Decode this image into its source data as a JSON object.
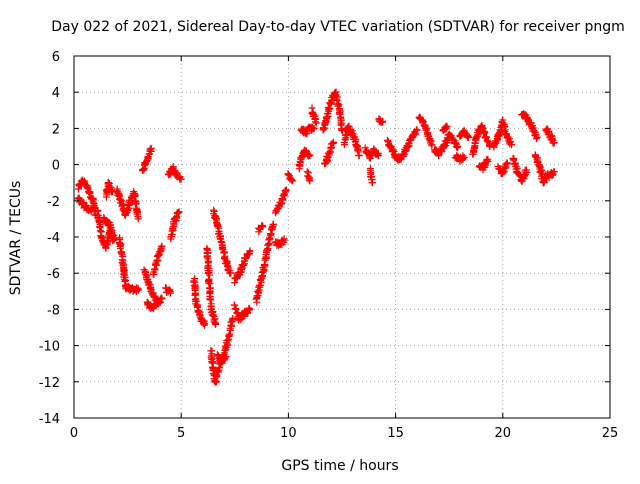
{
  "chart_data": {
    "type": "scatter",
    "title": "Day 022 of 2021, Sidereal Day-to-day VTEC variation (SDTVAR) for receiver pngm",
    "xlabel": "GPS time / hours",
    "ylabel": "SDTVAR / TECUs",
    "xlim": [
      0,
      25
    ],
    "ylim": [
      -14,
      6
    ],
    "xticks": [
      0,
      5,
      10,
      15,
      20,
      25
    ],
    "yticks": [
      -14,
      -12,
      -10,
      -8,
      -6,
      -4,
      -2,
      0,
      2,
      4,
      6
    ],
    "grid": true,
    "marker": "+",
    "color": "#ff0000",
    "traces": [
      [
        [
          0.2,
          -1.3
        ],
        [
          0.4,
          -0.9
        ],
        [
          0.6,
          -1.2
        ],
        [
          0.9,
          -2.0
        ],
        [
          1.0,
          -2.8
        ]
      ],
      [
        [
          0.2,
          -1.9
        ],
        [
          0.5,
          -2.3
        ],
        [
          0.8,
          -2.6
        ]
      ],
      [
        [
          1.1,
          -2.5
        ],
        [
          1.2,
          -3.3
        ],
        [
          1.3,
          -4.1
        ],
        [
          1.5,
          -4.6
        ],
        [
          1.7,
          -3.6
        ],
        [
          1.9,
          -4.1
        ]
      ],
      [
        [
          1.4,
          -3.0
        ],
        [
          1.7,
          -3.4
        ],
        [
          1.8,
          -4.2
        ]
      ],
      [
        [
          1.5,
          -1.7
        ],
        [
          1.6,
          -1.0
        ],
        [
          1.8,
          -1.5
        ]
      ],
      [
        [
          2.0,
          -1.4
        ],
        [
          2.2,
          -2.0
        ],
        [
          2.4,
          -2.8
        ],
        [
          2.6,
          -2.1
        ],
        [
          2.8,
          -1.5
        ],
        [
          3.0,
          -3.0
        ]
      ],
      [
        [
          2.1,
          -4.0
        ],
        [
          2.3,
          -5.6
        ],
        [
          2.4,
          -6.8
        ],
        [
          2.7,
          -6.9
        ],
        [
          3.0,
          -6.9
        ]
      ],
      [
        [
          3.2,
          -0.3
        ],
        [
          3.4,
          0.3
        ],
        [
          3.6,
          0.9
        ]
      ],
      [
        [
          3.3,
          -5.8
        ],
        [
          3.5,
          -6.6
        ],
        [
          3.7,
          -7.2
        ],
        [
          3.9,
          -7.6
        ],
        [
          4.1,
          -7.4
        ]
      ],
      [
        [
          3.4,
          -7.6
        ],
        [
          3.6,
          -7.9
        ],
        [
          3.9,
          -7.7
        ]
      ],
      [
        [
          3.7,
          -6.0
        ],
        [
          3.9,
          -5.2
        ],
        [
          4.1,
          -4.5
        ]
      ],
      [
        [
          4.3,
          -6.9
        ],
        [
          4.5,
          -7.1
        ]
      ],
      [
        [
          4.5,
          -4.0
        ],
        [
          4.7,
          -3.1
        ],
        [
          4.9,
          -2.6
        ]
      ],
      [
        [
          4.4,
          -0.6
        ],
        [
          4.6,
          -0.2
        ],
        [
          4.8,
          -0.6
        ],
        [
          5.0,
          -0.8
        ]
      ],
      [
        [
          5.6,
          -6.3
        ],
        [
          5.7,
          -7.6
        ],
        [
          5.9,
          -8.5
        ],
        [
          6.1,
          -8.8
        ]
      ],
      [
        [
          6.2,
          -4.6
        ],
        [
          6.4,
          -8.0
        ],
        [
          6.6,
          -8.8
        ]
      ],
      [
        [
          6.4,
          -10.3
        ],
        [
          6.5,
          -11.3
        ],
        [
          6.6,
          -12.0
        ],
        [
          6.8,
          -11.0
        ],
        [
          7.0,
          -10.5
        ],
        [
          7.2,
          -9.5
        ],
        [
          7.4,
          -8.5
        ]
      ],
      [
        [
          6.7,
          -10.6
        ],
        [
          6.9,
          -10.9
        ],
        [
          7.1,
          -10.6
        ]
      ],
      [
        [
          6.5,
          -2.6
        ],
        [
          6.7,
          -3.4
        ],
        [
          6.9,
          -4.4
        ],
        [
          7.1,
          -5.4
        ],
        [
          7.3,
          -6.0
        ]
      ],
      [
        [
          7.5,
          -7.8
        ],
        [
          7.7,
          -8.5
        ],
        [
          8.0,
          -8.2
        ],
        [
          8.2,
          -8.0
        ]
      ],
      [
        [
          7.5,
          -6.4
        ],
        [
          7.8,
          -5.8
        ],
        [
          8.0,
          -5.2
        ],
        [
          8.2,
          -4.8
        ]
      ],
      [
        [
          8.5,
          -7.5
        ],
        [
          8.7,
          -6.5
        ],
        [
          8.9,
          -5.5
        ],
        [
          9.1,
          -4.2
        ],
        [
          9.3,
          -3.3
        ]
      ],
      [
        [
          8.6,
          -3.6
        ],
        [
          8.8,
          -3.4
        ]
      ],
      [
        [
          9.4,
          -4.3
        ],
        [
          9.6,
          -4.5
        ],
        [
          9.8,
          -4.1
        ]
      ],
      [
        [
          9.4,
          -2.6
        ],
        [
          9.7,
          -2.0
        ],
        [
          9.9,
          -1.4
        ]
      ],
      [
        [
          10.0,
          -0.6
        ],
        [
          10.2,
          -0.9
        ]
      ],
      [
        [
          10.5,
          -0.2
        ],
        [
          10.6,
          0.4
        ],
        [
          10.8,
          0.8
        ],
        [
          11.0,
          0.5
        ]
      ],
      [
        [
          10.9,
          -0.4
        ],
        [
          11.0,
          -0.9
        ]
      ],
      [
        [
          10.6,
          1.9
        ],
        [
          10.8,
          1.8
        ],
        [
          11.0,
          2.0
        ],
        [
          11.2,
          2.0
        ]
      ],
      [
        [
          11.1,
          3.0
        ],
        [
          11.3,
          2.3
        ]
      ],
      [
        [
          11.6,
          1.8
        ],
        [
          11.8,
          2.6
        ],
        [
          12.0,
          3.6
        ],
        [
          12.2,
          3.9
        ],
        [
          12.4,
          2.9
        ],
        [
          12.5,
          1.9
        ]
      ],
      [
        [
          11.7,
          0.0
        ],
        [
          11.9,
          0.7
        ],
        [
          12.1,
          1.2
        ]
      ],
      [
        [
          12.6,
          1.2
        ],
        [
          12.8,
          2.1
        ],
        [
          13.1,
          1.4
        ],
        [
          13.3,
          0.5
        ]
      ],
      [
        [
          13.6,
          0.8
        ],
        [
          13.8,
          0.4
        ],
        [
          14.0,
          0.8
        ],
        [
          14.2,
          0.5
        ]
      ],
      [
        [
          13.8,
          -0.3
        ],
        [
          13.9,
          -1.0
        ]
      ],
      [
        [
          14.2,
          2.5
        ],
        [
          14.4,
          2.4
        ]
      ],
      [
        [
          14.6,
          1.3
        ],
        [
          14.8,
          1.0
        ]
      ],
      [
        [
          14.8,
          0.9
        ],
        [
          15.0,
          0.4
        ],
        [
          15.2,
          0.3
        ],
        [
          15.4,
          0.6
        ],
        [
          15.6,
          1.1
        ],
        [
          15.8,
          1.6
        ],
        [
          16.0,
          1.9
        ]
      ],
      [
        [
          16.1,
          2.6
        ],
        [
          16.3,
          2.3
        ],
        [
          16.5,
          1.7
        ],
        [
          16.7,
          1.1
        ]
      ],
      [
        [
          16.8,
          0.8
        ],
        [
          17.0,
          0.6
        ],
        [
          17.2,
          0.9
        ],
        [
          17.5,
          1.6
        ],
        [
          17.7,
          1.3
        ],
        [
          17.9,
          1.0
        ]
      ],
      [
        [
          17.2,
          1.8
        ],
        [
          17.4,
          2.1
        ]
      ],
      [
        [
          18.0,
          1.5
        ],
        [
          18.2,
          1.9
        ],
        [
          18.4,
          1.5
        ]
      ],
      [
        [
          17.8,
          0.5
        ],
        [
          18.0,
          0.3
        ],
        [
          18.2,
          0.4
        ]
      ],
      [
        [
          18.6,
          0.5
        ],
        [
          18.8,
          1.6
        ],
        [
          19.0,
          2.2
        ],
        [
          19.2,
          1.5
        ],
        [
          19.4,
          1.0
        ]
      ],
      [
        [
          18.9,
          0.0
        ],
        [
          19.1,
          -0.2
        ],
        [
          19.3,
          0.3
        ]
      ],
      [
        [
          19.6,
          0.9
        ],
        [
          19.8,
          1.6
        ],
        [
          20.0,
          2.4
        ],
        [
          20.2,
          1.5
        ],
        [
          20.4,
          1.1
        ]
      ],
      [
        [
          19.8,
          -0.2
        ],
        [
          20.0,
          -0.5
        ],
        [
          20.2,
          0.1
        ]
      ],
      [
        [
          20.5,
          0.4
        ],
        [
          20.7,
          -0.5
        ],
        [
          20.9,
          -0.9
        ],
        [
          21.1,
          -0.3
        ]
      ],
      [
        [
          20.9,
          2.8
        ],
        [
          21.1,
          2.6
        ],
        [
          21.3,
          2.2
        ],
        [
          21.6,
          1.5
        ]
      ],
      [
        [
          21.5,
          0.5
        ],
        [
          21.7,
          0.0
        ],
        [
          21.9,
          -1.0
        ],
        [
          22.1,
          -0.5
        ]
      ],
      [
        [
          22.0,
          2.0
        ],
        [
          22.2,
          1.6
        ],
        [
          22.4,
          1.2
        ]
      ],
      [
        [
          22.0,
          -0.6
        ],
        [
          22.2,
          -0.6
        ],
        [
          22.4,
          -0.4
        ]
      ]
    ]
  }
}
